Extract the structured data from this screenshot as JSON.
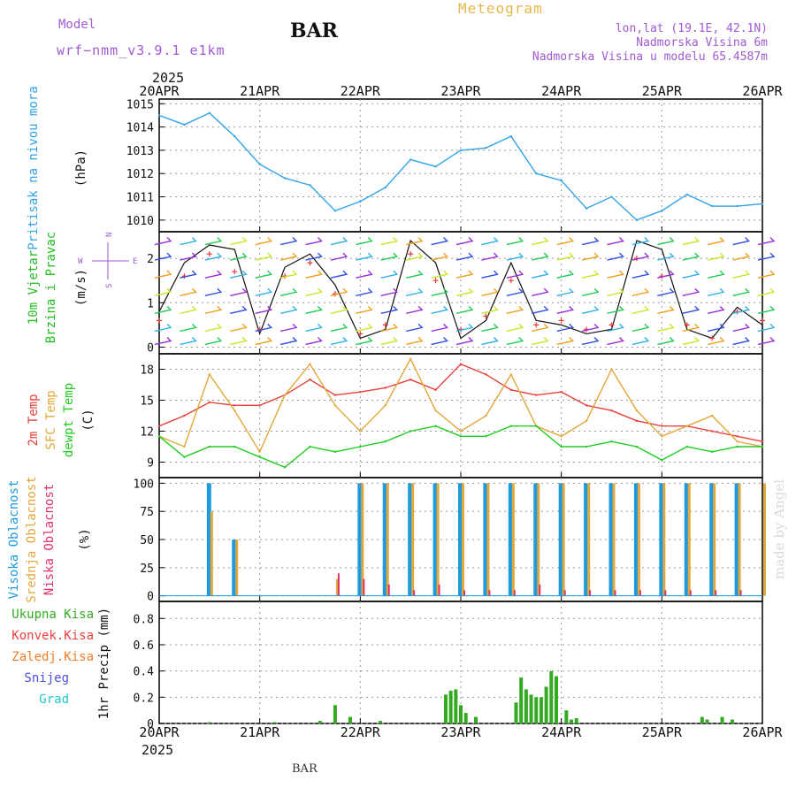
{
  "header": {
    "station": "BAR",
    "meteogram": "Meteogram",
    "model_label": "Model",
    "model_value": "wrf−nmm_v3.9.1  e1km",
    "location": "lon,lat (19.1E, 42.1N)",
    "elevation": "Nadmorska Visina 6m",
    "model_elevation": "Nadmorska Visina u modelu 65.4587m",
    "signature": "made by Angel",
    "footer_station": "BAR"
  },
  "time_axis": {
    "year": "2025",
    "labels": [
      "20APR",
      "21APR",
      "22APR",
      "23APR",
      "24APR",
      "25APR",
      "26APR"
    ]
  },
  "colors": {
    "pressure": "#33a3e8",
    "temp2m": "#e8403a",
    "sfc_temp": "#e2a83c",
    "dewpt": "#22cc22",
    "high_cloud": "#1e9bde",
    "mid_cloud": "#e2a83c",
    "low_cloud": "#e03070",
    "total_precip": "#33aa22",
    "convective": "#e84040",
    "freezing": "#f07d28",
    "snow": "#5050e0",
    "hail": "#22c8c8",
    "wind_label": "#22bb22",
    "purple": "#a05ad2",
    "frame": "#000000"
  },
  "chart_data": [
    {
      "type": "line",
      "title": "",
      "ylabel_lines": [
        "Pritisak na nivou mora",
        "(hPa)"
      ],
      "ylim": [
        1009.5,
        1015.2
      ],
      "yticks": [
        1010,
        1011,
        1012,
        1013,
        1014,
        1015
      ],
      "grid": true,
      "x": [
        0,
        0.25,
        0.5,
        0.75,
        1,
        1.25,
        1.5,
        1.75,
        2,
        2.25,
        2.5,
        2.75,
        3,
        3.25,
        3.5,
        3.75,
        4,
        4.25,
        4.5,
        4.75,
        5,
        5.25,
        5.5,
        5.75,
        6
      ],
      "series": [
        {
          "name": "Pritisak na nivou mora",
          "values": [
            1014.5,
            1014.1,
            1014.6,
            1013.6,
            1012.4,
            1011.8,
            1011.5,
            1010.4,
            1010.8,
            1011.4,
            1012.6,
            1012.3,
            1013.0,
            1013.1,
            1013.6,
            1012.0,
            1011.7,
            1010.5,
            1011.0,
            1010.0,
            1010.4,
            1011.1,
            1010.6,
            1010.6,
            1010.7
          ]
        }
      ]
    },
    {
      "type": "line",
      "title": "",
      "ylabel_lines": [
        "10m Vjetar",
        "Brzina i Pravac",
        "(m/s)"
      ],
      "compass": {
        "n": "N",
        "s": "S",
        "w": "W",
        "e": "E"
      },
      "ylim": [
        -0.15,
        2.6
      ],
      "yticks": [
        0,
        1,
        2
      ],
      "grid": true,
      "x": [
        0,
        0.25,
        0.5,
        0.75,
        1,
        1.25,
        1.5,
        1.75,
        2,
        2.25,
        2.5,
        2.75,
        3,
        3.25,
        3.5,
        3.75,
        4,
        4.25,
        4.5,
        4.75,
        5,
        5.25,
        5.5,
        5.75,
        6
      ],
      "series": [
        {
          "name": "Brzina",
          "values": [
            0.8,
            1.9,
            2.3,
            2.2,
            0.3,
            1.8,
            2.1,
            1.4,
            0.2,
            0.4,
            2.4,
            1.9,
            0.2,
            0.6,
            1.9,
            0.6,
            0.5,
            0.3,
            0.4,
            2.4,
            2.2,
            0.4,
            0.2,
            0.9,
            0.5
          ]
        },
        {
          "name": "Udari",
          "values": [
            0.6,
            1.6,
            2.1,
            1.7,
            0.4,
            1.6,
            1.9,
            1.2,
            0.3,
            0.5,
            2.1,
            1.5,
            0.4,
            0.7,
            1.5,
            0.5,
            0.6,
            0.4,
            0.5,
            2.0,
            1.6,
            0.5,
            0.2,
            0.8,
            0.6
          ]
        }
      ]
    },
    {
      "type": "line",
      "title": "",
      "ylabel_lines": [
        "2m Temp",
        "SFC Temp",
        "dewpt Temp",
        "(C)"
      ],
      "ylim": [
        7.5,
        19.5
      ],
      "yticks": [
        9,
        12,
        15,
        18
      ],
      "grid": true,
      "x": [
        0,
        0.25,
        0.5,
        0.75,
        1,
        1.25,
        1.5,
        1.75,
        2,
        2.25,
        2.5,
        2.75,
        3,
        3.25,
        3.5,
        3.75,
        4,
        4.25,
        4.5,
        4.75,
        5,
        5.25,
        5.5,
        5.75,
        6
      ],
      "series": [
        {
          "name": "2m Temp",
          "values": [
            12.5,
            13.5,
            14.8,
            14.5,
            14.5,
            15.5,
            17.0,
            15.5,
            15.8,
            16.2,
            17.0,
            16.0,
            18.5,
            17.5,
            16.0,
            15.5,
            15.8,
            14.5,
            14.0,
            13.0,
            12.5,
            12.5,
            12.0,
            11.5,
            11.0
          ]
        },
        {
          "name": "SFC Temp",
          "values": [
            11.5,
            10.5,
            17.5,
            14.0,
            10.0,
            15.5,
            18.5,
            14.5,
            12.0,
            14.5,
            19.0,
            14.0,
            12.0,
            13.5,
            17.5,
            12.5,
            11.5,
            13.0,
            18.0,
            14.0,
            11.5,
            12.5,
            13.5,
            11.0,
            10.5
          ]
        },
        {
          "name": "dewpt Temp",
          "values": [
            11.5,
            9.5,
            10.5,
            10.5,
            9.5,
            8.5,
            10.5,
            10.0,
            10.5,
            11.0,
            12.0,
            12.5,
            11.5,
            11.5,
            12.5,
            12.5,
            10.5,
            10.5,
            11.0,
            10.5,
            9.2,
            10.5,
            10.0,
            10.5,
            10.5
          ]
        }
      ]
    },
    {
      "type": "bar",
      "title": "",
      "ylabel_lines": [
        "Visoka Oblacnost",
        "Srednja Oblacnost",
        "Niska Oblacnost",
        "(%)"
      ],
      "ylim": [
        -5,
        105
      ],
      "yticks": [
        0,
        25,
        50,
        75,
        100
      ],
      "grid": true,
      "x": [
        0,
        0.25,
        0.5,
        0.75,
        1,
        1.25,
        1.5,
        1.75,
        2,
        2.25,
        2.5,
        2.75,
        3,
        3.25,
        3.5,
        3.75,
        4,
        4.25,
        4.5,
        4.75,
        5,
        5.25,
        5.5,
        5.75,
        6
      ],
      "series": [
        {
          "name": "Visoka Oblacnost",
          "values": [
            0,
            0,
            100,
            50,
            0,
            0,
            0,
            0,
            100,
            100,
            100,
            100,
            100,
            100,
            100,
            100,
            100,
            100,
            100,
            100,
            100,
            100,
            100,
            100,
            0
          ]
        },
        {
          "name": "Srednja Oblacnost",
          "values": [
            0,
            0,
            75,
            50,
            0,
            0,
            0,
            15,
            100,
            100,
            100,
            100,
            100,
            100,
            100,
            100,
            100,
            100,
            100,
            100,
            100,
            100,
            100,
            100,
            100
          ]
        },
        {
          "name": "Niska Oblacnost",
          "values": [
            0,
            0,
            0,
            0,
            0,
            0,
            0,
            20,
            15,
            10,
            5,
            10,
            5,
            5,
            5,
            10,
            5,
            5,
            5,
            5,
            5,
            5,
            5,
            5,
            0
          ]
        }
      ]
    },
    {
      "type": "bar",
      "title": "",
      "ylabel_lines": [
        "1hr Precip (mm)"
      ],
      "legend_lines": [
        "Ukupna Kisa",
        "Konvek.Kisa",
        "Zaledj.Kisa",
        "Snijeg",
        "Grad"
      ],
      "ylim": [
        0,
        0.93
      ],
      "yticks": [
        0,
        0.2,
        0.4,
        0.6,
        0.8
      ],
      "grid": true,
      "x": [
        0.5,
        1.15,
        1.6,
        1.75,
        1.9,
        2.2,
        2.85,
        2.9,
        2.95,
        3.0,
        3.05,
        3.15,
        3.55,
        3.6,
        3.65,
        3.7,
        3.75,
        3.8,
        3.85,
        3.9,
        3.95,
        4.05,
        4.1,
        4.15,
        5.4,
        5.45,
        5.6,
        5.7
      ],
      "series": [
        {
          "name": "Ukupna Kisa",
          "values": [
            0.01,
            0.01,
            0.02,
            0.14,
            0.05,
            0.02,
            0.22,
            0.25,
            0.26,
            0.14,
            0.08,
            0.05,
            0.16,
            0.35,
            0.26,
            0.22,
            0.2,
            0.2,
            0.28,
            0.4,
            0.36,
            0.1,
            0.03,
            0.04,
            0.05,
            0.03,
            0.05,
            0.03
          ]
        }
      ]
    }
  ]
}
